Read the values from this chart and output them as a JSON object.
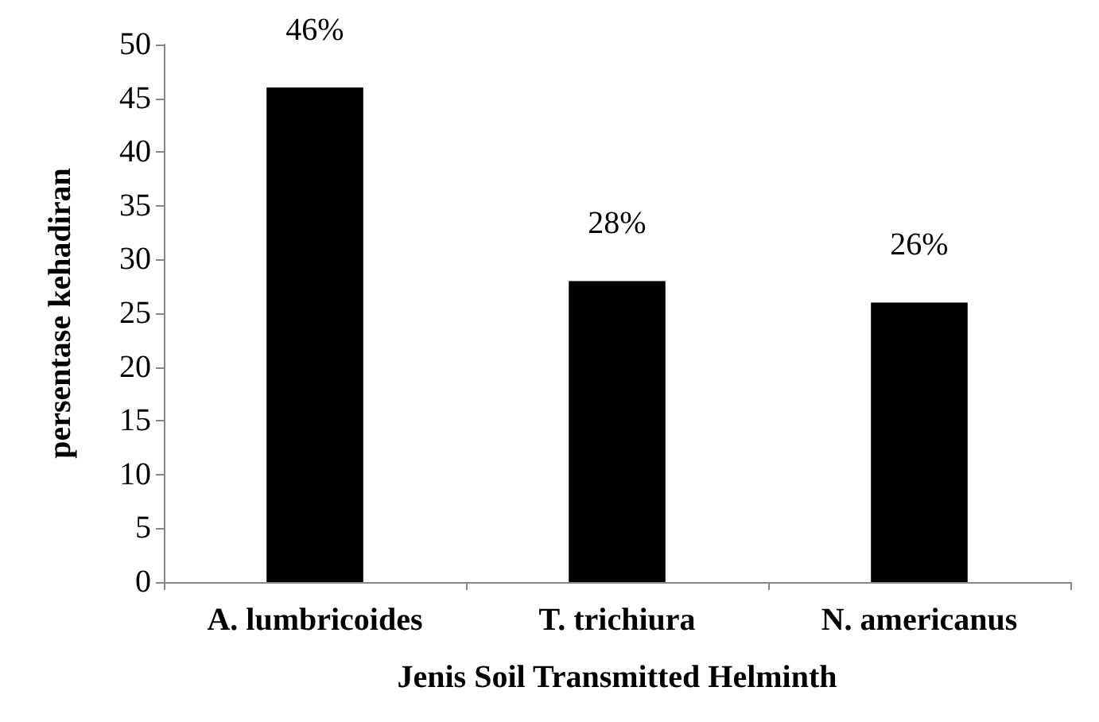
{
  "chart_data": {
    "type": "bar",
    "xlabel": "Jenis Soil Transmitted Helminth",
    "ylabel": "persentase kehadiran",
    "categories": [
      "A. lumbricoides",
      "T. trichiura",
      "N. americanus"
    ],
    "values": [
      46,
      28,
      26
    ],
    "value_labels": [
      "46%",
      "28%",
      "26%"
    ],
    "color": "#000000",
    "ylim": [
      0,
      50
    ],
    "yticks": [
      0,
      5,
      10,
      15,
      20,
      25,
      30,
      35,
      40,
      45,
      50
    ],
    "grid": false
  }
}
